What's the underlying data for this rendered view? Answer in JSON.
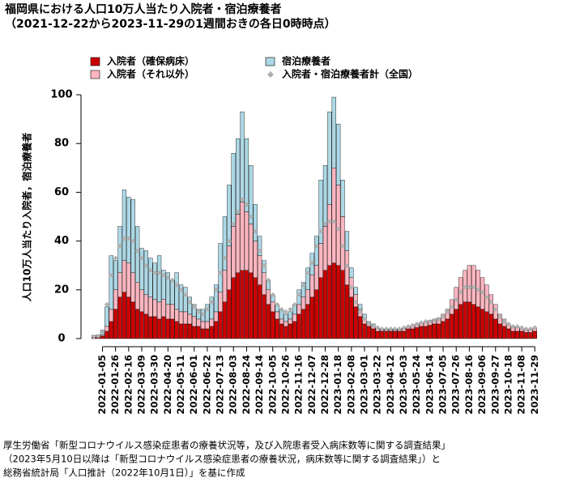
{
  "chart_data": {
    "type": "stacked-bar",
    "title": "福岡県における人口10万人当たり入院者・宿泊療養者",
    "subtitle": "（2021-12-22から2023-11-29の1週間おきの各日0時時点）",
    "y_label": "人口10万人当たり入院者，宿泊療養者",
    "categories": [
      null,
      null,
      "2022-01-05",
      null,
      null,
      "2022-01-26",
      null,
      null,
      "2022-02-16",
      null,
      null,
      "2022-03-09",
      null,
      null,
      "2022-03-30",
      null,
      null,
      "2022-04-20",
      null,
      null,
      "2022-05-11",
      null,
      null,
      "2022-06-01",
      null,
      null,
      "2022-06-22",
      null,
      null,
      "2022-07-13",
      null,
      null,
      "2022-08-03",
      null,
      null,
      "2022-08-24",
      null,
      null,
      "2022-09-14",
      null,
      null,
      "2022-10-05",
      null,
      null,
      "2022-10-26",
      null,
      null,
      "2022-11-16",
      null,
      null,
      "2022-12-07",
      null,
      null,
      "2022-12-28",
      null,
      null,
      "2023-01-18",
      null,
      null,
      "2023-02-08",
      null,
      null,
      "2023-03-01",
      null,
      null,
      "2023-03-22",
      null,
      null,
      "2023-04-12",
      null,
      null,
      "2023-05-03",
      null,
      null,
      "2023-05-24",
      null,
      null,
      "2023-06-14",
      null,
      null,
      "2023-07-05",
      null,
      null,
      "2023-07-26",
      null,
      null,
      "2023-08-16",
      null,
      null,
      "2023-09-06",
      null,
      null,
      "2023-09-27",
      null,
      null,
      "2023-10-18",
      null,
      null,
      "2023-11-08",
      null,
      null,
      "2023-11-29"
    ],
    "series": [
      {
        "name": "入院者（確保病床）",
        "color": "#cc0000",
        "values": [
          0.5,
          0.5,
          1,
          3,
          7,
          12,
          17,
          19,
          17,
          15,
          12,
          11,
          10,
          9,
          9,
          8,
          9,
          8,
          8,
          7,
          6,
          6,
          6,
          5,
          5,
          4,
          4,
          5,
          7,
          11,
          15,
          20,
          25,
          27,
          28,
          28,
          27,
          25,
          22,
          18,
          14,
          11,
          8,
          6,
          5,
          6,
          7,
          10,
          12,
          14,
          17,
          20,
          25,
          28,
          30,
          31,
          30,
          28,
          22,
          17,
          13,
          9,
          6,
          5,
          4,
          3,
          3,
          3,
          3,
          3,
          3,
          3,
          4,
          4,
          4.5,
          5,
          5,
          5.5,
          6,
          6,
          7,
          8,
          10,
          12,
          14,
          15,
          15,
          14,
          13,
          12,
          11,
          10,
          8,
          6,
          5,
          4,
          3,
          3,
          3,
          2.5,
          2.5,
          3
        ]
      },
      {
        "name": "入院者（それ以外）",
        "color": "#ffb6c1",
        "values": [
          0.3,
          0.3,
          0.5,
          2,
          5,
          8,
          10,
          13,
          14,
          12,
          11,
          9,
          8,
          8,
          7,
          7,
          7,
          6,
          6,
          5,
          5,
          5,
          4,
          4,
          3,
          3,
          3,
          3,
          4,
          8,
          13,
          18,
          21,
          24,
          28,
          24,
          20,
          15,
          12,
          9,
          6,
          4,
          3,
          2,
          2,
          2,
          3,
          4,
          5,
          6,
          9,
          10,
          14,
          18,
          25,
          39,
          33,
          22,
          14,
          8,
          5,
          3,
          2,
          1,
          1,
          1,
          0.5,
          0.5,
          0.5,
          0.5,
          0.5,
          1,
          1,
          1,
          1.5,
          1.5,
          2,
          2,
          2,
          2.5,
          3,
          4,
          6,
          9,
          11,
          13,
          15,
          16,
          15,
          13,
          11,
          8,
          6,
          4,
          3,
          2,
          2,
          1.5,
          1,
          1,
          1,
          1.5
        ]
      },
      {
        "name": "宿泊療養者",
        "color": "#add8e6",
        "values": [
          0.5,
          0.7,
          2,
          8,
          22,
          12,
          19,
          29,
          27,
          30,
          23,
          17,
          18,
          16,
          15,
          19,
          12,
          13,
          10,
          15,
          11,
          10,
          7,
          5,
          4,
          5,
          7,
          9,
          11,
          20,
          22,
          25,
          30,
          31,
          37,
          30,
          24,
          15,
          8,
          5,
          4,
          3,
          3,
          4,
          3,
          3,
          4,
          6,
          6,
          9,
          9,
          12,
          26,
          25,
          38,
          29,
          25,
          15,
          8,
          4,
          3,
          2,
          2,
          1,
          1,
          0.5,
          0.5,
          0.5,
          0.5,
          0.5,
          0.5,
          0.5,
          null,
          null,
          null,
          null,
          null,
          null,
          null,
          null,
          null,
          null,
          null,
          null,
          null,
          null,
          null,
          null,
          null,
          null,
          null,
          null,
          null,
          null,
          null,
          null,
          null,
          null,
          null,
          null,
          null,
          null
        ]
      },
      {
        "name": "入院者・宿泊療養者計（全国）",
        "color": "#b0b0b0",
        "type": "scatter",
        "values": [
          0.8,
          1,
          3,
          14,
          26,
          33,
          38,
          41,
          41,
          40,
          36,
          33,
          30,
          28,
          27,
          27,
          26,
          25,
          24,
          22,
          20,
          18,
          15,
          13,
          11,
          10,
          12,
          15,
          20,
          27,
          33,
          40,
          47,
          52,
          57,
          55,
          50,
          44,
          36,
          30,
          24,
          18,
          14,
          12,
          11,
          12,
          14,
          18,
          22,
          27,
          31,
          38,
          44,
          47,
          48,
          48,
          45,
          38,
          30,
          21,
          15,
          11,
          8,
          6,
          5,
          4.5,
          4,
          4,
          4,
          4,
          4,
          4.5,
          5,
          5.5,
          6,
          6.5,
          7,
          7,
          7.5,
          8,
          9,
          11,
          13,
          16,
          19,
          21,
          21,
          21,
          20,
          19,
          17,
          15,
          12,
          9,
          7,
          6,
          5,
          5,
          4.5,
          4,
          4,
          4.5
        ]
      }
    ],
    "ylim": [
      0,
      100
    ],
    "yticks": [
      0,
      20,
      40,
      60,
      80,
      100
    ],
    "notes": [
      "厚生労働省「新型コロナウイルス感染症患者の療養状況等，及び入院患者受入病床数等に関する調査結果」",
      "（2023年5月10日以降は「新型コロナウイルス感染症患者の療養状況，病床数等に関する調査結果」）と",
      "総務省統計局「人口推計（2022年10月1日）」を基に作成"
    ]
  }
}
